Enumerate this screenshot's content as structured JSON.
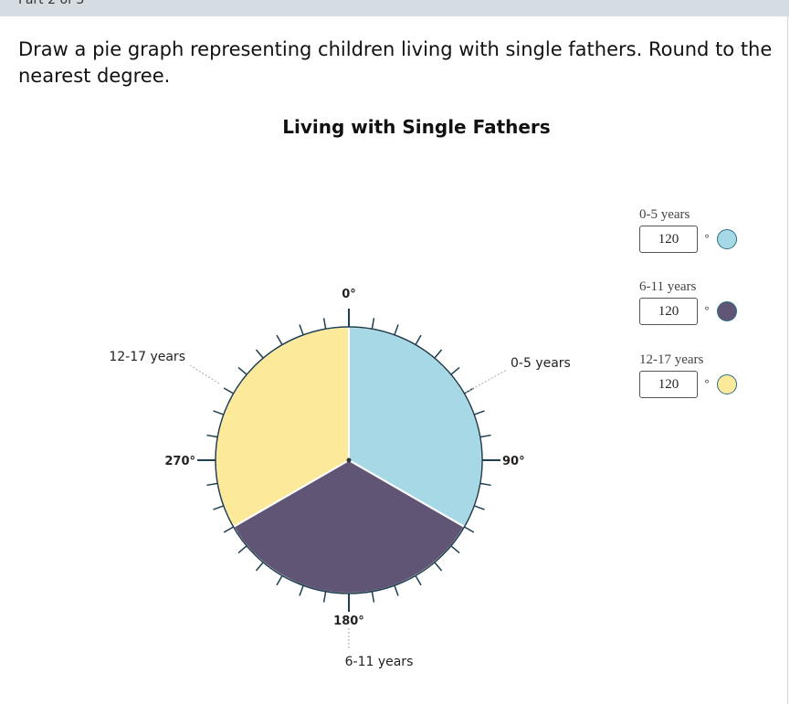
{
  "header": {
    "part_label": "Part 2 of 3"
  },
  "question": {
    "prompt": "Draw a pie graph representing children living with single fathers. Round to the nearest degree."
  },
  "colors": {
    "slice_0_5": "#a6d9e5",
    "slice_6_11": "#605575",
    "slice_12_17": "#fde99a",
    "tick_color": "#1f3f4f"
  },
  "chart_data": {
    "type": "pie",
    "title": "Living with Single Fathers",
    "slices": [
      {
        "label": "0-5 years",
        "degrees": 120,
        "start": 0,
        "color": "#a6d9e5"
      },
      {
        "label": "6-11 years",
        "degrees": 120,
        "start": 120,
        "color": "#605575"
      },
      {
        "label": "12-17 years",
        "degrees": 120,
        "start": 240,
        "color": "#fde99a"
      }
    ],
    "axis_labels": [
      "0°",
      "90°",
      "180°",
      "270°"
    ]
  },
  "legend": {
    "items": [
      {
        "label": "0-5 years",
        "value": "120",
        "unit": "°",
        "color": "#a6d9e5"
      },
      {
        "label": "6-11 years",
        "value": "120",
        "unit": "°",
        "color": "#605575"
      },
      {
        "label": "12-17 years",
        "value": "120",
        "unit": "°",
        "color": "#fde99a"
      }
    ]
  }
}
